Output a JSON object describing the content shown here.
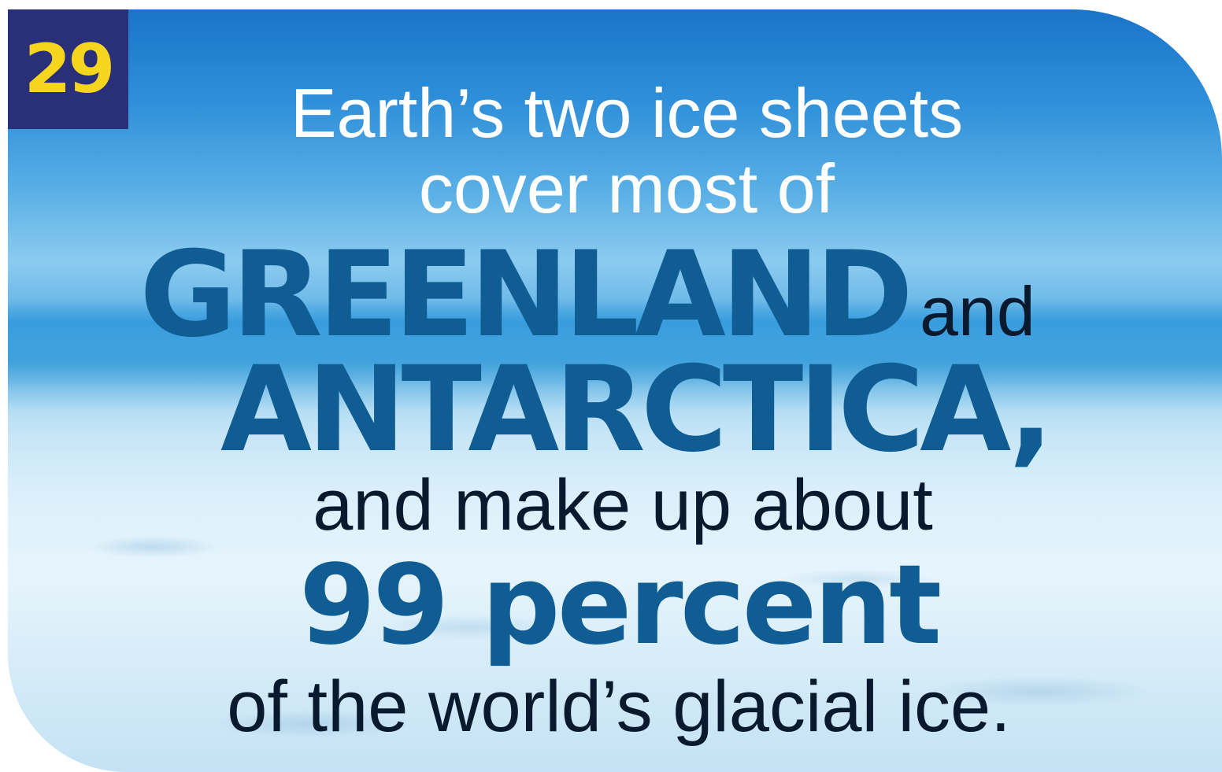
{
  "badge": {
    "number": "29"
  },
  "headline": {
    "line1": "Earth’s two ice sheets",
    "line2": "cover most of",
    "greenland": "GREENLAND",
    "and_small": "and",
    "antarctica": "ANTARCTICA,",
    "line5": "and make up about",
    "line6": "99 percent",
    "line7": "of the world’s glacial ice."
  },
  "colors": {
    "badge_bg": "#2a2f7a",
    "badge_text": "#f6d51f",
    "intro_text": "#ffffff",
    "emphasis_text": "#0f5d93",
    "body_text": "#0a1a2e"
  }
}
